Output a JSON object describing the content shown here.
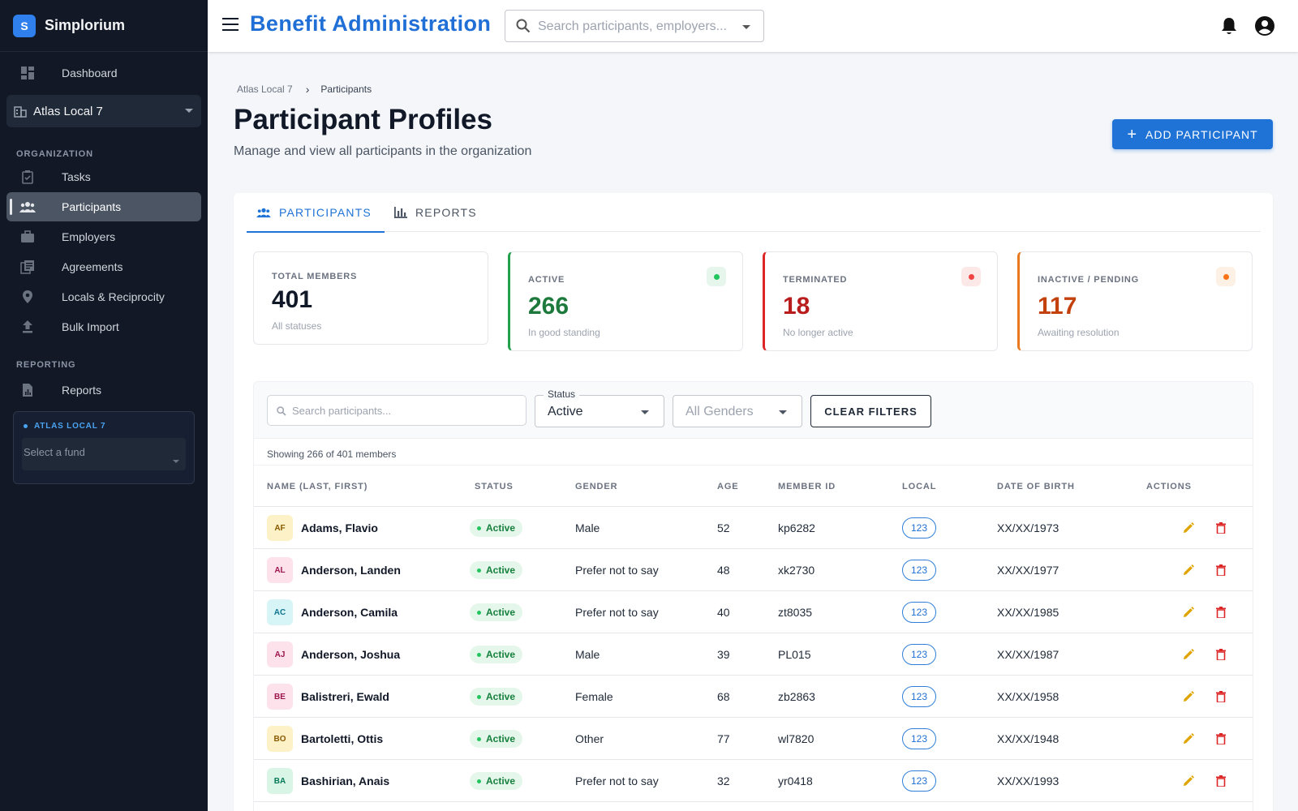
{
  "brand": {
    "logo_letter": "S",
    "name": "Simplorium"
  },
  "sidebar": {
    "dashboard": "Dashboard",
    "org_selector": "Atlas Local 7",
    "organization_heading": "ORGANIZATION",
    "org_items": [
      {
        "label": "Tasks",
        "icon": "clipboard-icon"
      },
      {
        "label": "Participants",
        "icon": "people-icon",
        "active": true
      },
      {
        "label": "Employers",
        "icon": "briefcase-icon"
      },
      {
        "label": "Agreements",
        "icon": "document-stack-icon"
      },
      {
        "label": "Locals & Reciprocity",
        "icon": "location-pin-icon"
      },
      {
        "label": "Bulk Import",
        "icon": "upload-icon"
      }
    ],
    "reporting_heading": "REPORTING",
    "reports": "Reports",
    "fund_box": {
      "title": "ATLAS LOCAL 7",
      "placeholder": "Select a fund"
    }
  },
  "topbar": {
    "title": "Benefit Administration",
    "search_placeholder": "Search participants, employers..."
  },
  "breadcrumb": {
    "parent": "Atlas Local 7",
    "current": "Participants"
  },
  "page": {
    "title": "Participant Profiles",
    "subtitle": "Manage and view all participants in the organization",
    "add_button": "ADD PARTICIPANT"
  },
  "tabs": {
    "participants": "PARTICIPANTS",
    "reports": "REPORTS"
  },
  "stats": {
    "total": {
      "label": "TOTAL MEMBERS",
      "value": "401",
      "caption": "All statuses"
    },
    "active": {
      "label": "ACTIVE",
      "value": "266",
      "caption": "In good standing",
      "color": "#1e7a3c"
    },
    "terminated": {
      "label": "TERMINATED",
      "value": "18",
      "caption": "No longer active",
      "color": "#b91c1c"
    },
    "inactive": {
      "label": "INACTIVE / PENDING",
      "value": "117",
      "caption": "Awaiting resolution",
      "color": "#c2410c"
    }
  },
  "filters": {
    "search_placeholder": "Search participants...",
    "status_legend": "Status",
    "status_value": "Active",
    "gender_value": "All Genders",
    "clear_button": "CLEAR FILTERS"
  },
  "showing": "Showing 266 of 401 members",
  "table": {
    "headers": {
      "name": "NAME (LAST, FIRST)",
      "status": "STATUS",
      "gender": "GENDER",
      "age": "AGE",
      "member_id": "MEMBER ID",
      "local": "LOCAL",
      "dob": "DATE OF BIRTH",
      "actions": "ACTIONS"
    },
    "rows": [
      {
        "initials": "AF",
        "name": "Adams, Flavio",
        "status": "Active",
        "gender": "Male",
        "age": "52",
        "member_id": "kp6282",
        "local": "123",
        "dob": "XX/XX/1973",
        "avatar_bg": "#fdf1c7",
        "avatar_fg": "#8a5a00"
      },
      {
        "initials": "AL",
        "name": "Anderson, Landen",
        "status": "Active",
        "gender": "Prefer not to say",
        "age": "48",
        "member_id": "xk2730",
        "local": "123",
        "dob": "XX/XX/1977",
        "avatar_bg": "#fde2ec",
        "avatar_fg": "#9d174d"
      },
      {
        "initials": "AC",
        "name": "Anderson, Camila",
        "status": "Active",
        "gender": "Prefer not to say",
        "age": "40",
        "member_id": "zt8035",
        "local": "123",
        "dob": "XX/XX/1985",
        "avatar_bg": "#d7f4f7",
        "avatar_fg": "#0e7490"
      },
      {
        "initials": "AJ",
        "name": "Anderson, Joshua",
        "status": "Active",
        "gender": "Male",
        "age": "39",
        "member_id": "PL015",
        "local": "123",
        "dob": "XX/XX/1987",
        "avatar_bg": "#fde2ec",
        "avatar_fg": "#9d174d"
      },
      {
        "initials": "BE",
        "name": "Balistreri, Ewald",
        "status": "Active",
        "gender": "Female",
        "age": "68",
        "member_id": "zb2863",
        "local": "123",
        "dob": "XX/XX/1958",
        "avatar_bg": "#fde2ec",
        "avatar_fg": "#9d174d"
      },
      {
        "initials": "BO",
        "name": "Bartoletti, Ottis",
        "status": "Active",
        "gender": "Other",
        "age": "77",
        "member_id": "wl7820",
        "local": "123",
        "dob": "XX/XX/1948",
        "avatar_bg": "#fdf1c7",
        "avatar_fg": "#8a5a00"
      },
      {
        "initials": "BA",
        "name": "Bashirian, Anais",
        "status": "Active",
        "gender": "Prefer not to say",
        "age": "32",
        "member_id": "yr0418",
        "local": "123",
        "dob": "XX/XX/1993",
        "avatar_bg": "#d9f5e6",
        "avatar_fg": "#047857"
      }
    ]
  }
}
